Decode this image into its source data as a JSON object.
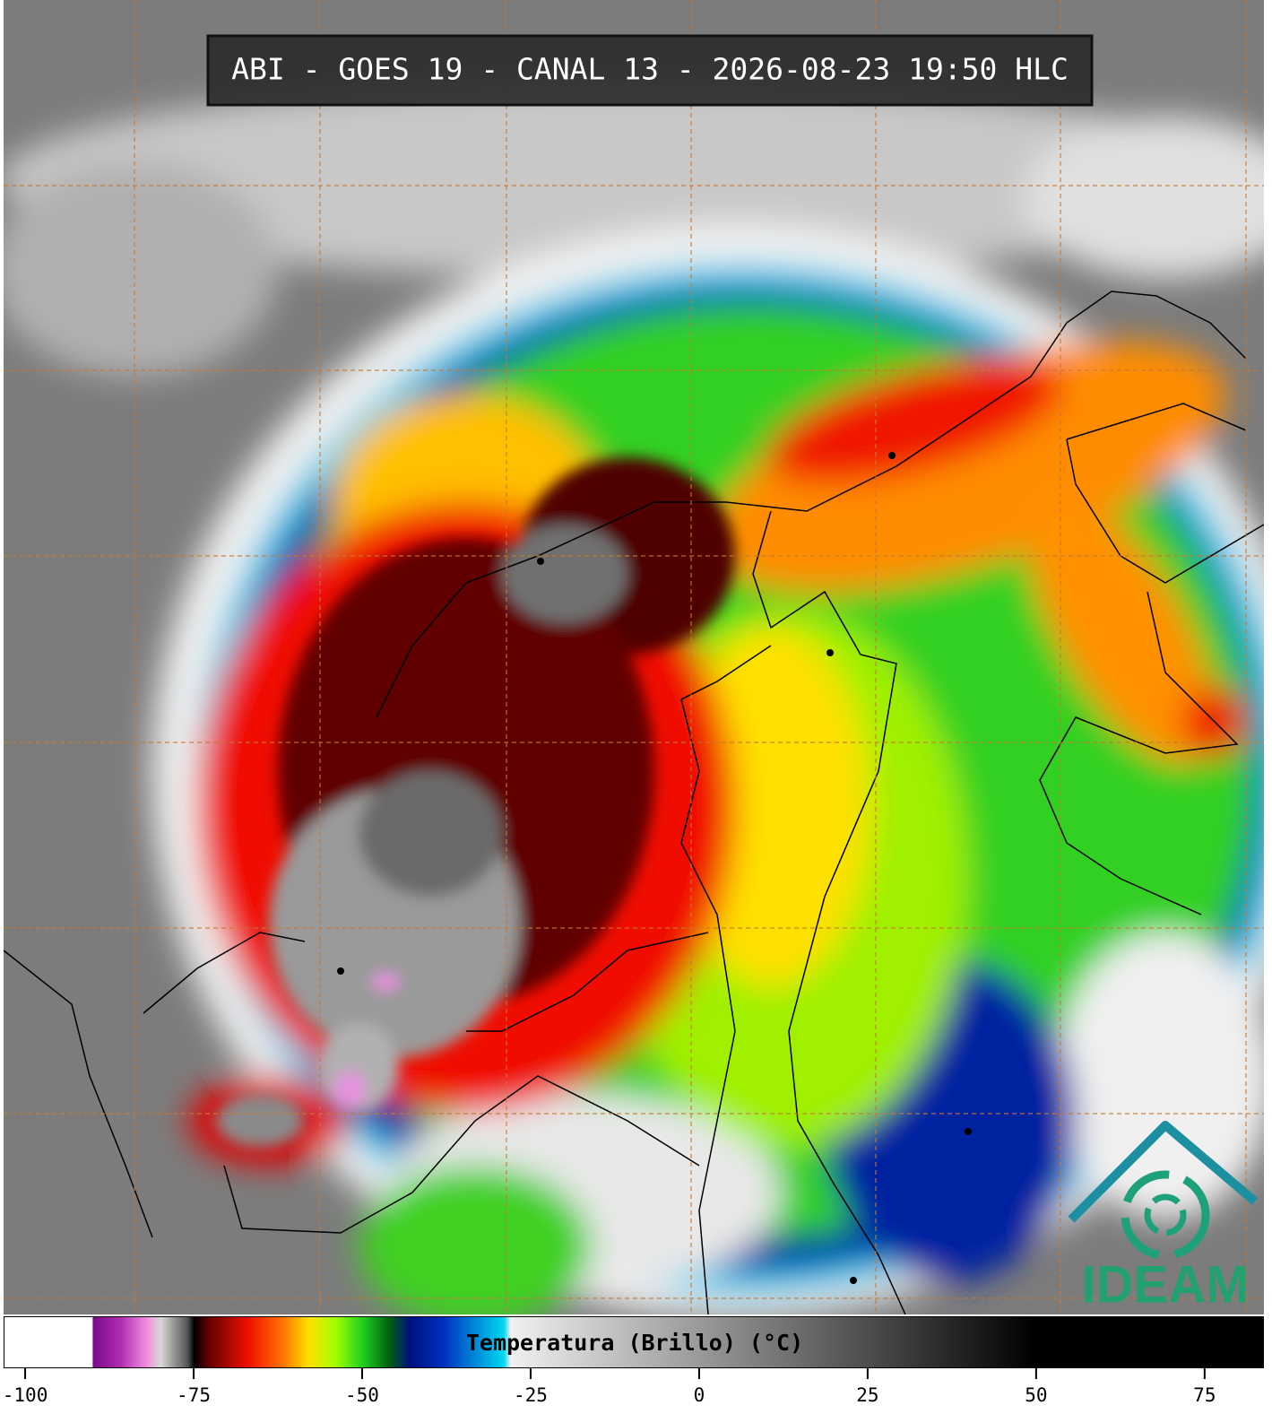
{
  "header": {
    "title": "ABI - GOES 19 - CANAL 13 - 2026-08-23 19:50 HLC"
  },
  "chart_data": {
    "type": "colorbar",
    "title": "Temperatura (Brillo) (°C)",
    "xlim": [
      -103.2,
      83.8
    ],
    "xticks": [
      -100,
      -75,
      -50,
      -25,
      0,
      25,
      50,
      75
    ],
    "colorscale": [
      {
        "value": -103.2,
        "color": "#ffffff"
      },
      {
        "value": -90.2,
        "color": "#ffffff"
      },
      {
        "value": -90,
        "color": "#7a0a8a"
      },
      {
        "value": -86,
        "color": "#b02cb0"
      },
      {
        "value": -82,
        "color": "#f090e0"
      },
      {
        "value": -80,
        "color": "#d8d8d8"
      },
      {
        "value": -76,
        "color": "#555555"
      },
      {
        "value": -75,
        "color": "#000000"
      },
      {
        "value": -73,
        "color": "#600000"
      },
      {
        "value": -67,
        "color": "#f01000"
      },
      {
        "value": -62,
        "color": "#ff7000"
      },
      {
        "value": -58,
        "color": "#ffe000"
      },
      {
        "value": -54,
        "color": "#a0ff00"
      },
      {
        "value": -50,
        "color": "#20d020"
      },
      {
        "value": -46,
        "color": "#006010"
      },
      {
        "value": -43,
        "color": "#001080"
      },
      {
        "value": -38,
        "color": "#0030c0"
      },
      {
        "value": -29,
        "color": "#00d8f0"
      },
      {
        "value": -28,
        "color": "#f0f0f0"
      },
      {
        "value": 50,
        "color": "#000000"
      },
      {
        "value": 83.8,
        "color": "#000000"
      }
    ]
  },
  "logo": {
    "text": "IDEAM"
  }
}
